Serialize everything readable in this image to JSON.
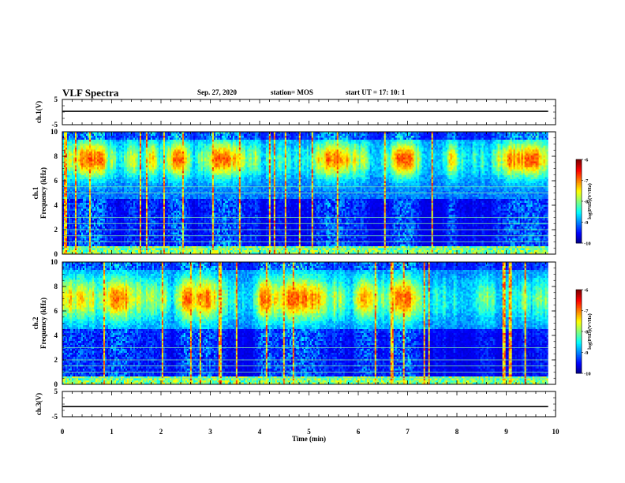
{
  "header": {
    "title": "VLF Spectra",
    "date": "Sep. 27, 2020",
    "station": "station= MOS",
    "start_ut": "start  UT =   17: 10: 1"
  },
  "chart_data": [
    {
      "type": "line",
      "panel": "waveform-ch1",
      "ylabel": "ch.1(V)",
      "ylim": [
        -5,
        5
      ],
      "yticks": [
        "5",
        "-5"
      ],
      "series": [
        {
          "x": [
            0,
            9.85
          ],
          "values": [
            0.3,
            0.3
          ]
        }
      ]
    },
    {
      "type": "heatmap",
      "panel": "spectrogram-ch1",
      "ylabel": "ch.1\nFrequency (kHz)",
      "ylabel_line1": "ch.1",
      "ylabel_line2": "Frequency (kHz)",
      "ylim": [
        0,
        10
      ],
      "yticks": [
        "0",
        "2",
        "4",
        "6",
        "8",
        "10"
      ],
      "xlim": [
        0,
        10
      ],
      "data_extent_x": [
        0,
        9.85
      ],
      "colorbar": {
        "label": "log(PSD)(V²/Hz)",
        "range": [
          -10,
          -6
        ],
        "ticks": [
          "-6",
          "-7",
          "-8",
          "-9",
          "-10"
        ]
      },
      "dominant_band_khz": [
        6.5,
        9.0
      ],
      "harmonic_lines_khz": [
        0.5,
        1.0,
        1.5,
        2.0,
        2.5,
        3.0,
        5.0,
        5.5
      ]
    },
    {
      "type": "heatmap",
      "panel": "spectrogram-ch2",
      "ylabel": "ch.2\nFrequency (kHz)",
      "ylabel_line1": "ch.2",
      "ylabel_line2": "Frequency (kHz)",
      "ylim": [
        0,
        10
      ],
      "yticks": [
        "0",
        "2",
        "4",
        "6",
        "8",
        "10"
      ],
      "xlim": [
        0,
        10
      ],
      "data_extent_x": [
        0,
        9.85
      ],
      "colorbar": {
        "label": "log(PSD)(V²/Hz)",
        "range": [
          -10,
          -6
        ],
        "ticks": [
          "-6",
          "-7",
          "-8",
          "-9",
          "-10"
        ]
      },
      "dominant_band_khz": [
        5.5,
        8.5
      ],
      "harmonic_lines_khz": [
        0.5,
        1.0,
        1.5,
        2.0,
        3.0
      ]
    },
    {
      "type": "line",
      "panel": "waveform-ch3",
      "ylabel": "ch.3(V)",
      "ylim": [
        -5,
        5
      ],
      "yticks": [
        "5",
        "-5"
      ],
      "series": [
        {
          "x": [
            0,
            9.85
          ],
          "values": [
            -1.0,
            -1.0
          ]
        }
      ]
    }
  ],
  "xaxis": {
    "label": "Time (min)",
    "range": [
      0,
      10
    ],
    "ticks": [
      "0",
      "1",
      "2",
      "3",
      "4",
      "5",
      "6",
      "7",
      "8",
      "9",
      "10"
    ]
  }
}
